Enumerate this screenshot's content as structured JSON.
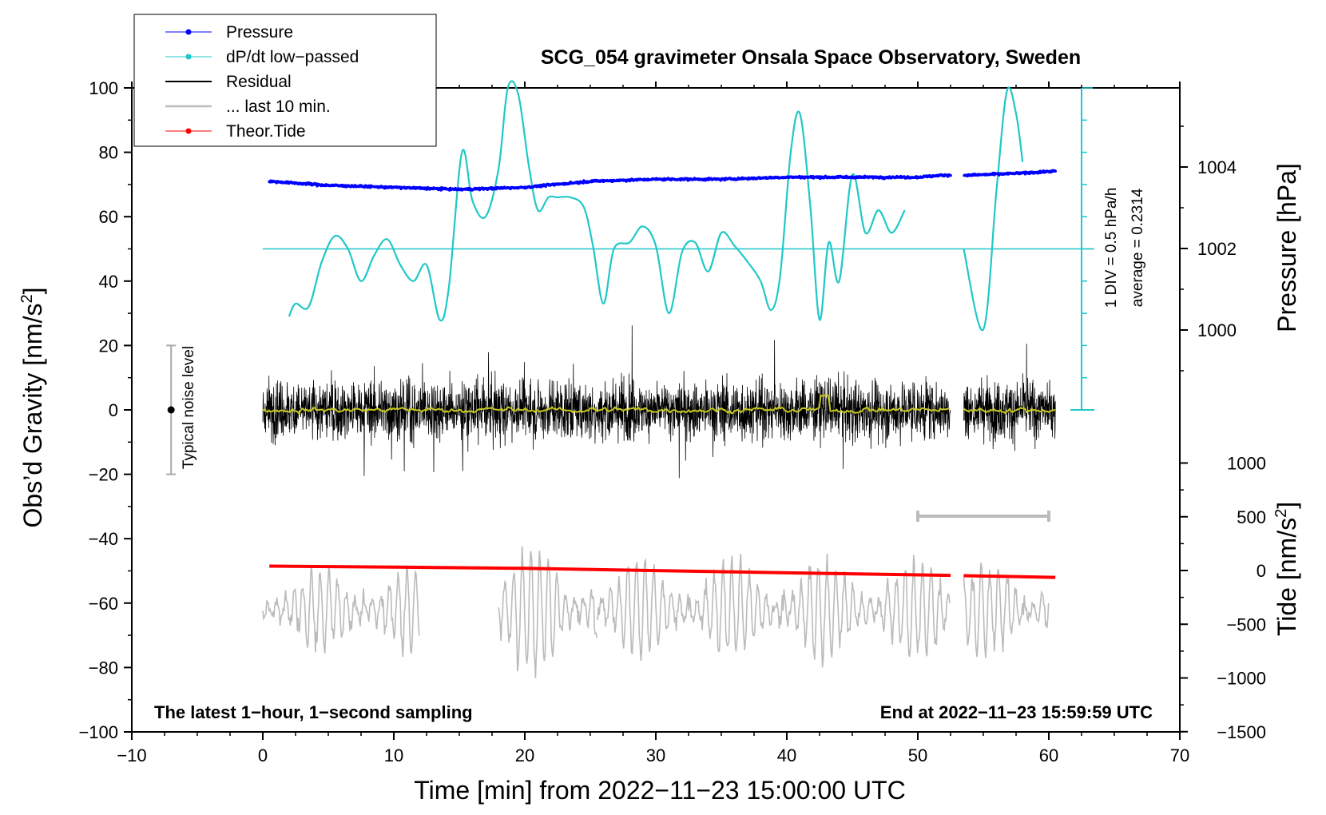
{
  "chart_data": {
    "type": "line",
    "title": "SCG_054 gravimeter Onsala Space Observatory, Sweden",
    "xlabel": "Time [min] from 2022−11−23 15:00:00 UTC",
    "ylabel_left": "Obs’d Gravity [nm/s",
    "ylabel_left_sup": "2",
    "ylabel_left_close": "]",
    "ylabel_right_pressure": "Pressure [hPa]",
    "ylabel_right_tide": "Tide [nm/s",
    "ylabel_right_tide_sup": "2",
    "ylabel_right_tide_close": "]",
    "xlim": [
      -10,
      70
    ],
    "ylim": [
      -100,
      100
    ],
    "x_ticks": [
      -10,
      0,
      10,
      20,
      30,
      40,
      50,
      60,
      70
    ],
    "x_tick_labels": [
      "−10",
      "0",
      "10",
      "20",
      "30",
      "40",
      "50",
      "60",
      "70"
    ],
    "y_ticks": [
      -100,
      -80,
      -60,
      -40,
      -20,
      0,
      20,
      40,
      60,
      80,
      100
    ],
    "y_tick_labels": [
      "−100",
      "−80",
      "−60",
      "−40",
      "−20",
      "0",
      "20",
      "40",
      "60",
      "80",
      "100"
    ],
    "pressure_ticks": [
      1000,
      1002,
      1004
    ],
    "pressure_tick_labels": [
      "1000",
      "1002",
      "1004"
    ],
    "pressure_range_hpa": [
      998,
      1006
    ],
    "tide_ticks": [
      -1500,
      -1000,
      -500,
      0,
      500,
      1000
    ],
    "tide_tick_labels": [
      "−1500",
      "−1000",
      "−500",
      "0",
      "500",
      "1000"
    ],
    "tide_range": [
      -1500,
      1000
    ],
    "legend": [
      {
        "label": "Pressure",
        "color": "#0000ff",
        "marker": true
      },
      {
        "label": "dP/dt low−passed",
        "color": "#20c8c8",
        "marker": true
      },
      {
        "label": "Residual",
        "color": "#000000",
        "marker": false
      },
      {
        "label": "... last 10 min.",
        "color": "#bbbbbb",
        "marker": false
      },
      {
        "label": "Theor.Tide",
        "color": "#ff0000",
        "marker": true
      }
    ],
    "noise_label": "Typical noise level",
    "noise_range": [
      -20,
      20
    ],
    "dpdt_scale_label": "1 DIV = 0.5 hPa/h",
    "dpdt_average_label": "average = 0.2314",
    "dpdt_reference_y": 50,
    "note_left": "The latest 1−hour, 1−second sampling",
    "note_right": "End at 2022−11−23 15:59:59 UTC",
    "data_gap_min": [
      52.5,
      53.5
    ],
    "series": [
      {
        "name": "Pressure",
        "color": "#0000ff",
        "unit": "hPa",
        "x": [
          0.5,
          5,
          10,
          15,
          20,
          25,
          30,
          35,
          40,
          45,
          50,
          52,
          54,
          58,
          60.5
        ],
        "values": [
          1003.65,
          1003.55,
          1003.5,
          1003.45,
          1003.5,
          1003.65,
          1003.7,
          1003.7,
          1003.75,
          1003.75,
          1003.75,
          1003.8,
          1003.8,
          1003.85,
          1003.9
        ]
      },
      {
        "name": "dP/dt low-passed",
        "color": "#20c8c8",
        "unit": "gravity-axis units",
        "x": [
          2,
          2.5,
          3.5,
          4.5,
          5.5,
          6.5,
          7.5,
          8.5,
          9.5,
          10.5,
          11.5,
          12.5,
          13.5,
          14.2,
          15.2,
          16,
          17,
          18,
          18.7,
          19.5,
          20.3,
          21,
          21.8,
          22.5,
          23.5,
          24.5,
          25.2,
          26,
          26.8,
          28,
          29,
          30,
          31,
          32,
          33,
          34,
          35,
          36,
          37,
          38,
          38.8,
          39.5,
          40.3,
          41,
          41.8,
          42.5,
          43.2,
          44,
          45,
          46,
          47,
          48,
          49,
          53.5,
          55,
          56,
          56.8,
          57.5,
          58
        ],
        "values": [
          29,
          33,
          32,
          46,
          54,
          50,
          40,
          48,
          53,
          45,
          40,
          45,
          28,
          38,
          80,
          65,
          60,
          75,
          100,
          98,
          76,
          62,
          66,
          66,
          66,
          63,
          51,
          33,
          50,
          52,
          57,
          51,
          30,
          49,
          52,
          43,
          55,
          51,
          46,
          40,
          31,
          42,
          80,
          92,
          63,
          28,
          52,
          40,
          73,
          55,
          62,
          55,
          62,
          50,
          25,
          68,
          99,
          92,
          77
        ]
      },
      {
        "name": "Residual",
        "color": "#000000",
        "unit": "nm/s2",
        "noise_amplitude": 10,
        "x_range": [
          0,
          60.5
        ]
      },
      {
        "name": "Residual smoothed",
        "color": "#c8c820",
        "unit": "nm/s2",
        "x_range": [
          0,
          60.5
        ],
        "level": 0
      },
      {
        "name": "... last 10 min.",
        "color": "#bbbbbb",
        "unit": "nm/s2",
        "x_range": [
          0,
          60
        ],
        "center": -62
      },
      {
        "name": "Theor.Tide",
        "color": "#ff0000",
        "unit": "nm/s2 (tide axis)",
        "x": [
          0.5,
          10,
          20,
          30,
          40,
          52.5,
          53.5,
          60.5
        ],
        "values": [
          -48.5,
          -48.8,
          -49.2,
          -49.9,
          -50.6,
          -51.4,
          -51.5,
          -52.0
        ]
      }
    ],
    "last10_bar_x": [
      50,
      60
    ],
    "last10_bar_y": -33
  }
}
